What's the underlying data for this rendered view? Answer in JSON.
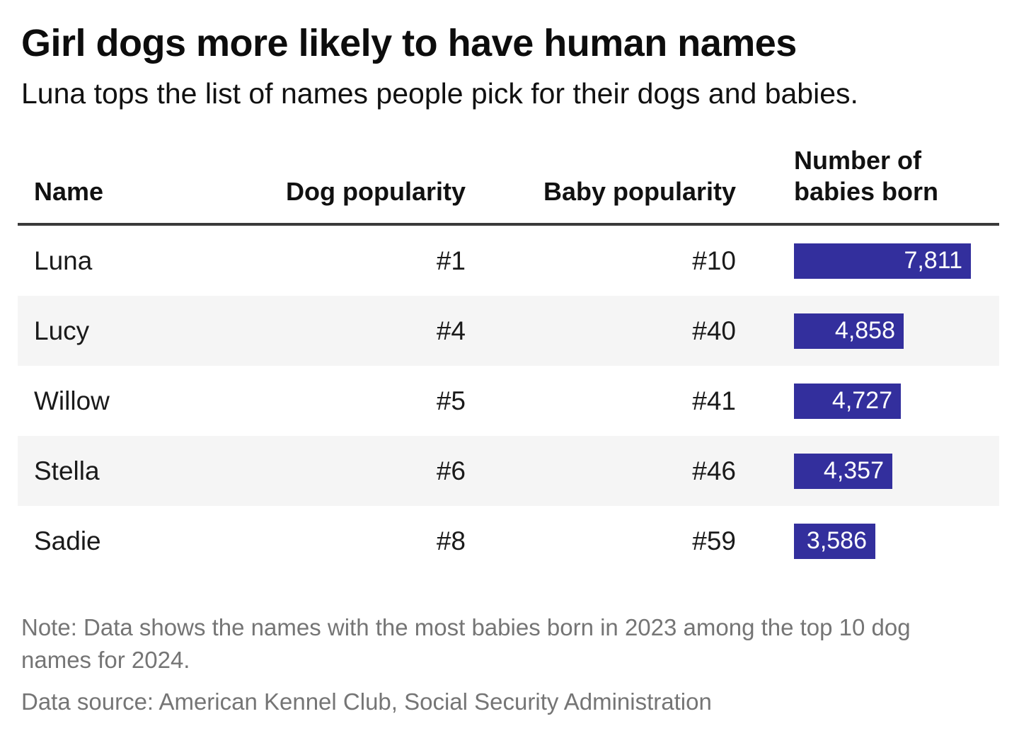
{
  "header": {
    "title": "Girl dogs more likely to have human names",
    "subtitle": "Luna tops the list of names people pick for their dogs and babies."
  },
  "table": {
    "col_name": "Name",
    "col_dog": "Dog popularity",
    "col_baby": "Baby popularity",
    "col_babies": "Number of babies born",
    "rows": [
      {
        "name": "Luna",
        "dog": "#1",
        "baby": "#10",
        "babies": 7811,
        "babies_label": "7,811"
      },
      {
        "name": "Lucy",
        "dog": "#4",
        "baby": "#40",
        "babies": 4858,
        "babies_label": "4,858"
      },
      {
        "name": "Willow",
        "dog": "#5",
        "baby": "#41",
        "babies": 4727,
        "babies_label": "4,727"
      },
      {
        "name": "Stella",
        "dog": "#6",
        "baby": "#46",
        "babies": 4357,
        "babies_label": "4,357"
      },
      {
        "name": "Sadie",
        "dog": "#8",
        "baby": "#59",
        "babies": 3586,
        "babies_label": "3,586"
      }
    ]
  },
  "footer": {
    "note": "Note: Data shows the names with the most babies born in 2023 among the top 10 dog names for 2024.",
    "source": "Data source: American Kennel Club, Social Security Administration"
  },
  "colors": {
    "bar": "#332f9d",
    "row_stripe": "#f5f5f5",
    "header_rule": "#3a3a3a",
    "footnote_text": "#757575"
  },
  "chart_data": {
    "type": "table",
    "title": "Girl dogs more likely to have human names",
    "subtitle": "Luna tops the list of names people pick for their dogs and babies.",
    "columns": [
      "Name",
      "Dog popularity",
      "Baby popularity",
      "Number of babies born"
    ],
    "rows": [
      {
        "name": "Luna",
        "dog_popularity": "#1",
        "baby_popularity": "#10",
        "babies_born": 7811
      },
      {
        "name": "Lucy",
        "dog_popularity": "#4",
        "baby_popularity": "#40",
        "babies_born": 4858
      },
      {
        "name": "Willow",
        "dog_popularity": "#5",
        "baby_popularity": "#41",
        "babies_born": 4727
      },
      {
        "name": "Stella",
        "dog_popularity": "#6",
        "baby_popularity": "#46",
        "babies_born": 4357
      },
      {
        "name": "Sadie",
        "dog_popularity": "#8",
        "baby_popularity": "#59",
        "babies_born": 3586
      }
    ],
    "bar_column": "Number of babies born",
    "bar_value_range": [
      0,
      7811
    ],
    "bar_color": "#332f9d",
    "zebra_striping": true,
    "note": "Note: Data shows the names with the most babies born in 2023 among the top 10 dog names for 2024.",
    "source": "Data source: American Kennel Club, Social Security Administration"
  }
}
